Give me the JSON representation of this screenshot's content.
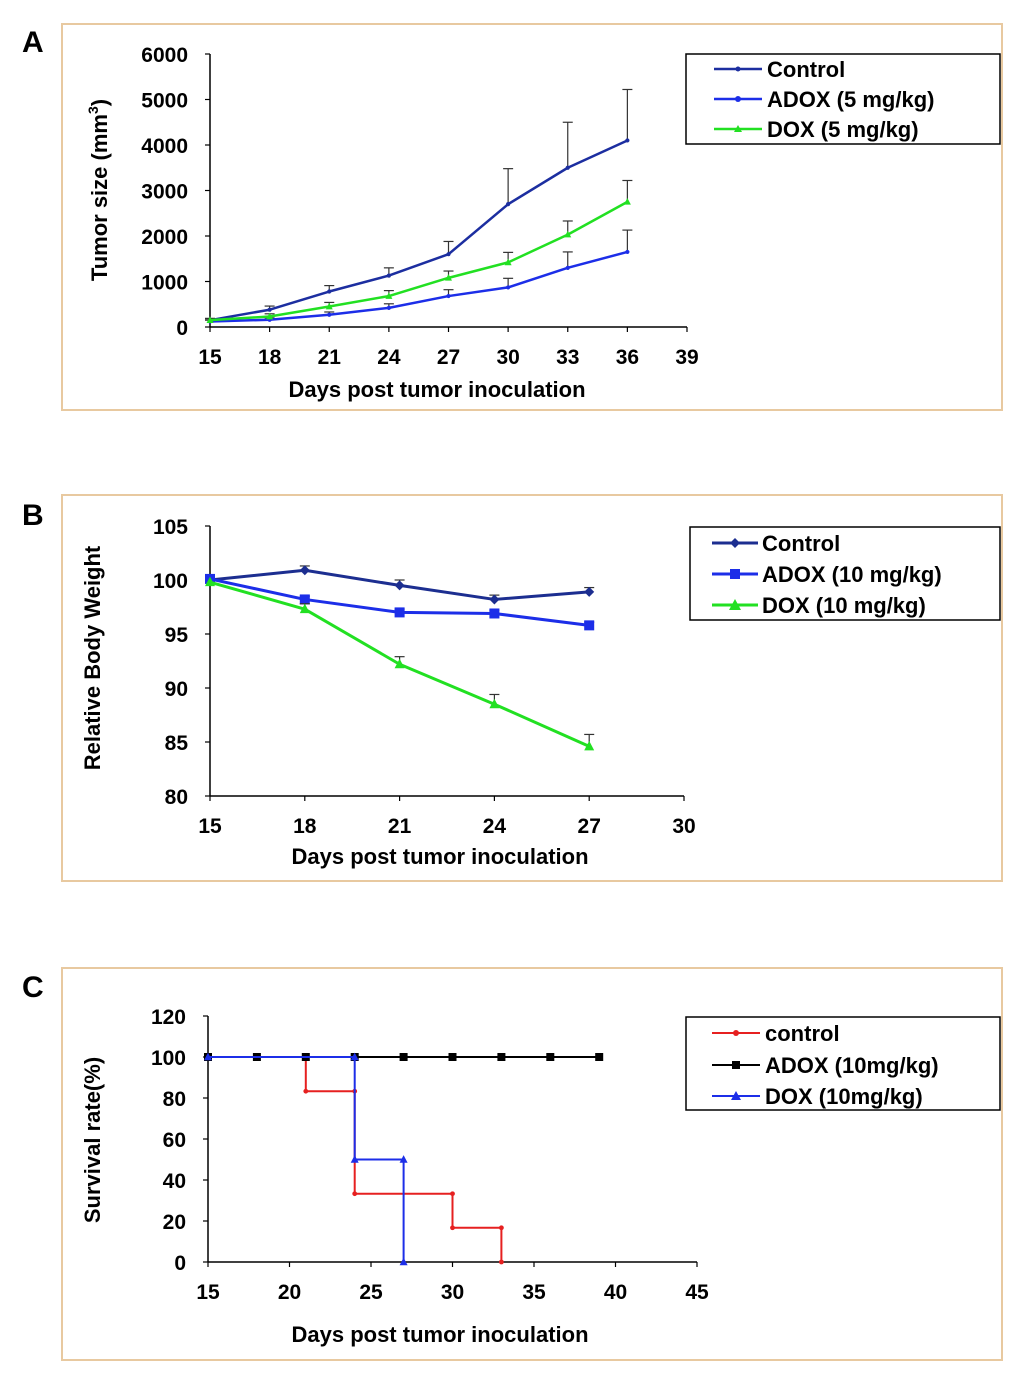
{
  "chart_data": [
    {
      "panel": "A",
      "type": "line",
      "ylabel_pre": "Tumor size (mm",
      "ylabel_sup": "3",
      "ylabel_post": ")",
      "xlabel": "Days post tumor inoculation",
      "xlim": [
        15,
        39
      ],
      "ylim": [
        0,
        6000
      ],
      "xticks": [
        "15",
        "18",
        "21",
        "24",
        "27",
        "30",
        "33",
        "36",
        "39"
      ],
      "yticks": [
        "0",
        "1000",
        "2000",
        "3000",
        "4000",
        "5000",
        "6000"
      ],
      "series": [
        {
          "name": "Control",
          "color": "#1c2ea0",
          "marker": "dot",
          "x": [
            15,
            18,
            21,
            24,
            27,
            30,
            33,
            36
          ],
          "y": [
            150,
            380,
            780,
            1130,
            1600,
            2700,
            3500,
            4100
          ],
          "err": [
            40,
            80,
            130,
            170,
            280,
            780,
            1000,
            1120
          ]
        },
        {
          "name": "ADOX (5 mg/kg)",
          "color": "#1c2ee8",
          "marker": "dot",
          "x": [
            15,
            18,
            21,
            24,
            27,
            30,
            33,
            36
          ],
          "y": [
            120,
            160,
            270,
            420,
            680,
            870,
            1300,
            1650
          ],
          "err": [
            30,
            40,
            60,
            90,
            140,
            200,
            350,
            480
          ]
        },
        {
          "name": "DOX (5 mg/kg)",
          "color": "#22e022",
          "marker": "triangle",
          "x": [
            15,
            18,
            21,
            24,
            27,
            30,
            33,
            36
          ],
          "y": [
            150,
            230,
            450,
            680,
            1080,
            1420,
            2030,
            2750
          ],
          "err": [
            30,
            60,
            90,
            120,
            150,
            220,
            300,
            470
          ]
        }
      ]
    },
    {
      "panel": "B",
      "type": "line",
      "ylabel": "Relative Body Weight",
      "xlabel": "Days post tumor inoculation",
      "xlim": [
        15,
        30
      ],
      "ylim": [
        80,
        105
      ],
      "xticks": [
        "15",
        "18",
        "21",
        "24",
        "27",
        "30"
      ],
      "yticks": [
        "80",
        "85",
        "90",
        "95",
        "100",
        "105"
      ],
      "series": [
        {
          "name": "Control",
          "color": "#1c2e90",
          "marker": "diamond",
          "x": [
            15,
            18,
            21,
            24,
            27
          ],
          "y": [
            100,
            100.9,
            99.5,
            98.2,
            98.9
          ],
          "err": [
            0,
            0.4,
            0.5,
            0.4,
            0.4
          ]
        },
        {
          "name": "ADOX (10 mg/kg)",
          "color": "#1c2ee8",
          "marker": "square",
          "x": [
            15,
            18,
            21,
            24,
            27
          ],
          "y": [
            100.1,
            98.2,
            97.0,
            96.9,
            95.8
          ],
          "err": [
            0,
            0.3,
            0.3,
            0.3,
            0.3
          ]
        },
        {
          "name": "DOX (10 mg/kg)",
          "color": "#22e022",
          "marker": "triangle",
          "x": [
            15,
            18,
            21,
            24,
            27
          ],
          "y": [
            99.8,
            97.3,
            92.2,
            88.5,
            84.6
          ],
          "err": [
            0,
            0.5,
            0.7,
            0.9,
            1.1
          ]
        }
      ]
    },
    {
      "panel": "C",
      "type": "line",
      "ylabel": "Survival rate(%)",
      "xlabel": "Days post tumor inoculation",
      "xlim": [
        15,
        45
      ],
      "ylim": [
        0,
        120
      ],
      "xticks": [
        "15",
        "20",
        "25",
        "30",
        "35",
        "40",
        "45"
      ],
      "yticks": [
        "0",
        "20",
        "40",
        "60",
        "80",
        "100",
        "120"
      ],
      "series": [
        {
          "name": "control",
          "color": "#e62020",
          "marker": "dot",
          "points": [
            [
              15,
              100
            ],
            [
              21,
              100
            ],
            [
              21,
              83.3
            ],
            [
              24,
              83.3
            ],
            [
              24,
              33.3
            ],
            [
              30,
              33.3
            ],
            [
              30,
              16.7
            ],
            [
              33,
              16.7
            ],
            [
              33,
              0
            ]
          ]
        },
        {
          "name": "ADOX (10mg/kg)",
          "color": "#000000",
          "marker": "square",
          "points": [
            [
              15,
              100
            ],
            [
              18,
              100
            ],
            [
              21,
              100
            ],
            [
              24,
              100
            ],
            [
              27,
              100
            ],
            [
              30,
              100
            ],
            [
              33,
              100
            ],
            [
              36,
              100
            ],
            [
              39,
              100
            ]
          ]
        },
        {
          "name": "DOX (10mg/kg)",
          "color": "#1c2ee8",
          "marker": "triangle",
          "points": [
            [
              15,
              100
            ],
            [
              24,
              100
            ],
            [
              24,
              50
            ],
            [
              27,
              50
            ],
            [
              27,
              0
            ]
          ]
        }
      ]
    }
  ]
}
